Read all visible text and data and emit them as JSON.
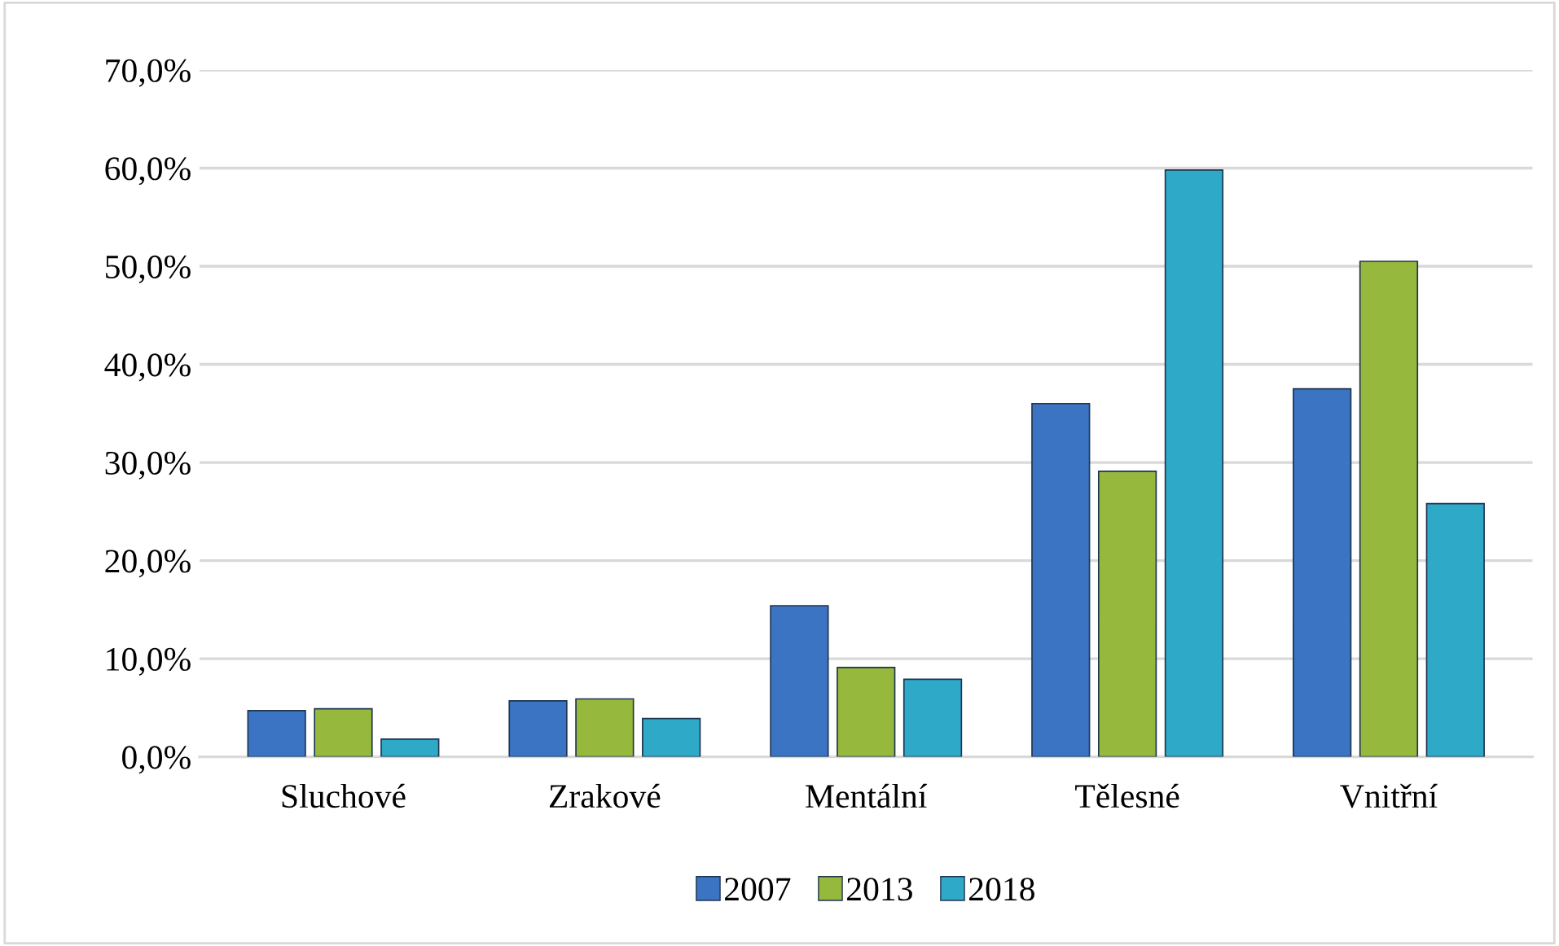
{
  "chart_data": {
    "type": "bar",
    "categories": [
      "Sluchové",
      "Zrakové",
      "Mentální",
      "Tělesné",
      "Vnitřní"
    ],
    "series": [
      {
        "name": "2007",
        "color": "#3b74c2",
        "values": [
          4.7,
          5.7,
          15.4,
          36.0,
          37.5
        ]
      },
      {
        "name": "2013",
        "color": "#96b83c",
        "values": [
          4.9,
          5.9,
          9.1,
          29.1,
          50.5
        ]
      },
      {
        "name": "2018",
        "color": "#2eaac8",
        "values": [
          1.8,
          3.9,
          7.9,
          59.8,
          25.8
        ]
      }
    ],
    "ylim": [
      0,
      70
    ],
    "yticks": [
      {
        "value": 0,
        "label": "0,0%"
      },
      {
        "value": 10,
        "label": "10,0%"
      },
      {
        "value": 20,
        "label": "20,0%"
      },
      {
        "value": 30,
        "label": "30,0%"
      },
      {
        "value": 40,
        "label": "40,0%"
      },
      {
        "value": 50,
        "label": "50,0%"
      },
      {
        "value": 60,
        "label": "60,0%"
      },
      {
        "value": 70,
        "label": "70,0%"
      }
    ],
    "grid": "y",
    "legend": "bottom"
  }
}
